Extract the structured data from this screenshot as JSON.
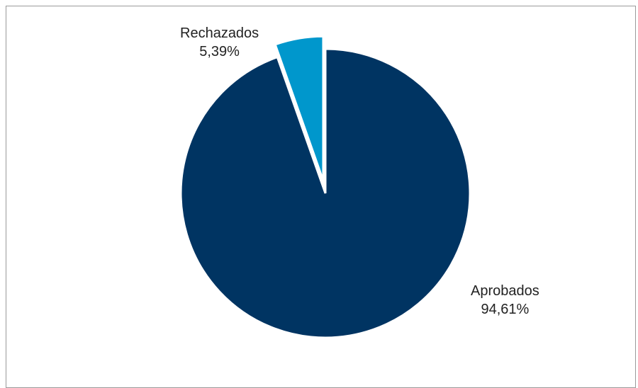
{
  "chart_data": {
    "type": "pie",
    "title": "",
    "slices": [
      {
        "name": "Aprobados",
        "value": 94.61,
        "value_label": "94,61%",
        "color": "#003462",
        "exploded": false
      },
      {
        "name": "Rechazados",
        "value": 5.39,
        "value_label": "5,39%",
        "color": "#0097cc",
        "exploded": true
      }
    ],
    "start_angle_deg": 0,
    "direction": "clockwise",
    "legend": "none",
    "data_labels": "outside"
  }
}
